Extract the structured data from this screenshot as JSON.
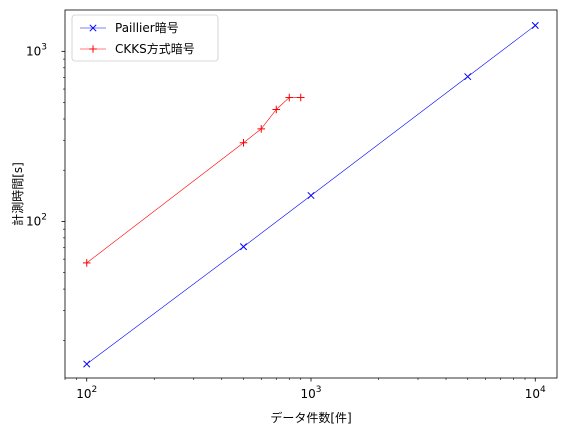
{
  "chart_data": {
    "type": "line",
    "xscale": "log",
    "yscale": "log",
    "xlim": [
      80,
      12500
    ],
    "ylim": [
      12,
      1750
    ],
    "xlabel": "データ件数[件]",
    "ylabel": "計測時間[s]",
    "x_ticks": [
      {
        "value": 100,
        "base": "10",
        "exp": "2"
      },
      {
        "value": 1000,
        "base": "10",
        "exp": "3"
      },
      {
        "value": 10000,
        "base": "10",
        "exp": "4"
      }
    ],
    "y_ticks": [
      {
        "value": 100,
        "base": "10",
        "exp": "2"
      },
      {
        "value": 1000,
        "base": "10",
        "exp": "3"
      }
    ],
    "legend_position": "top-left",
    "grid": false,
    "series": [
      {
        "name": "Paillier暗号",
        "color": "#0000ff",
        "marker": "x",
        "x": [
          100,
          500,
          1000,
          5000,
          10000
        ],
        "y": [
          14.5,
          71,
          142,
          710,
          1420
        ]
      },
      {
        "name": "CKKS方式暗号",
        "color": "#ff0000",
        "marker": "+",
        "x": [
          100,
          500,
          600,
          700,
          800,
          900
        ],
        "y": [
          57,
          290,
          350,
          455,
          535,
          535
        ]
      }
    ]
  }
}
